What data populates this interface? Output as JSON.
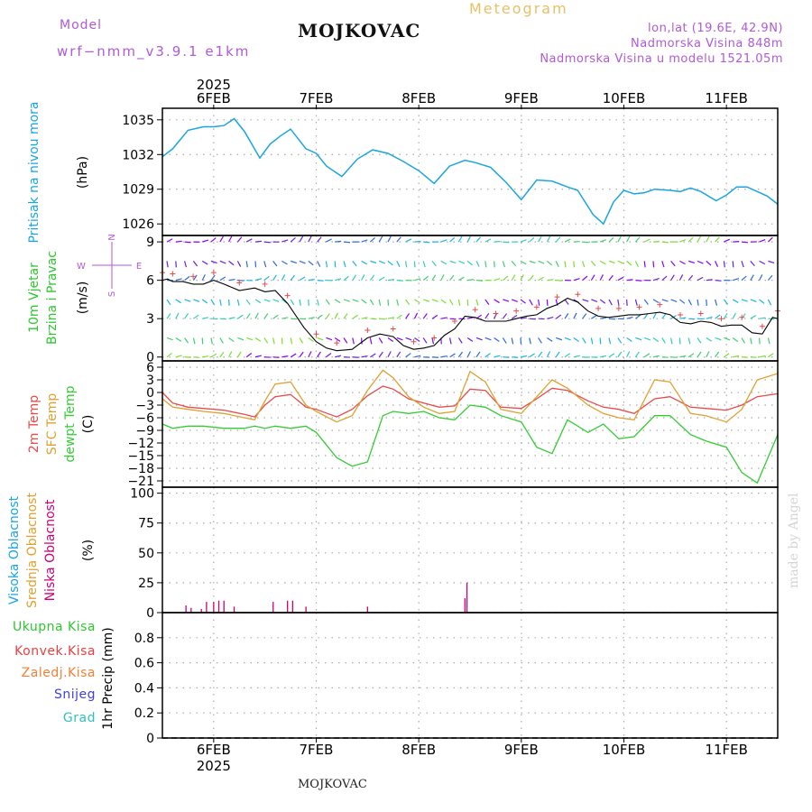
{
  "header": {
    "meteogram_label": "Meteogram",
    "title": "MOJKOVAC",
    "model_label": "Model",
    "model_name": "wrf−nmm_v3.9.1  e1km",
    "lonlat": "lon,lat (19.6E, 42.9N)",
    "elevation": "Nadmorska Visina 848m",
    "model_elevation": "Nadmorska Visina u modelu 1521.05m",
    "footer_title": "MOJKOVAC",
    "credit": "made by Angel"
  },
  "colors": {
    "pressure": "#1ba5e0",
    "temp2m": "#e84a4a",
    "sfc_temp": "#e0a030",
    "dewpoint": "#33cc33",
    "cloud_low": "#cc0077",
    "header_purple": "#b05ad8",
    "meteogram_label": "#e8c068",
    "legend_green": "#2ec82e",
    "legend_red": "#e84040",
    "legend_orange": "#f0803a",
    "legend_blue": "#4040e0",
    "legend_teal": "#30c0c0",
    "legend_cloud_high": "#1ba5e0",
    "legend_cloud_mid": "#e0a030",
    "legend_cloud_low": "#cc0077"
  },
  "time_axis": {
    "year": "2025",
    "days": [
      "6FEB",
      "7FEB",
      "8FEB",
      "9FEB",
      "10FEB",
      "11FEB"
    ]
  },
  "panels": {
    "pressure": {
      "label": "Pritisak na nivou mora",
      "unit": "(hPa)",
      "ticks": [
        "1035",
        "1032",
        "1029",
        "1026"
      ]
    },
    "wind": {
      "label_1": "10m Vjetar",
      "label_2": "Brzina i Pravac",
      "unit": "(m/s)",
      "ticks": [
        "9",
        "6",
        "3",
        "0"
      ],
      "compass": {
        "n": "N",
        "s": "S",
        "w": "W",
        "e": "E"
      }
    },
    "temperature": {
      "label_1": "2m Temp",
      "label_2": "SFC Temp",
      "label_3": "dewpt Temp",
      "unit": "(C)",
      "ticks": [
        "6",
        "3",
        "0",
        "−3",
        "−6",
        "−9",
        "−12",
        "−15",
        "−18",
        "−21"
      ]
    },
    "clouds": {
      "label_high": "Visoka Oblacnost",
      "label_mid": "Srednja Oblacnost",
      "label_low": "Niska Oblacnost",
      "unit": "(%)",
      "ticks": [
        "100",
        "75",
        "50",
        "25",
        "0"
      ]
    },
    "precip": {
      "label_total": "Ukupna Kisa",
      "label_conv": "Konvek.Kisa",
      "label_frozen": "Zaledj.Kisa",
      "label_snow": "Snijeg",
      "label_hail": "Grad",
      "unit": "1hr Precip (mm)",
      "ticks": [
        "0.8",
        "0.6",
        "0.4",
        "0.2",
        "0"
      ]
    }
  },
  "chart_data": {
    "type": "line",
    "x_unit": "days from 5 FEB 2025 00 UTC",
    "x_range": [
      0.5,
      6.5
    ],
    "pressure": {
      "name": "Pritisak na nivou mora",
      "ylim": [
        1025,
        1036
      ],
      "x": [
        0.5,
        0.6,
        0.75,
        0.9,
        1.0,
        1.1,
        1.2,
        1.3,
        1.45,
        1.55,
        1.65,
        1.75,
        1.9,
        2.0,
        2.1,
        2.25,
        2.4,
        2.55,
        2.7,
        2.85,
        3.0,
        3.15,
        3.3,
        3.45,
        3.55,
        3.7,
        3.85,
        4.0,
        4.15,
        4.3,
        4.45,
        4.55,
        4.7,
        4.8,
        4.9,
        5.0,
        5.1,
        5.2,
        5.3,
        5.45,
        5.55,
        5.65,
        5.75,
        5.9,
        6.0,
        6.1,
        6.2,
        6.3,
        6.4,
        6.5
      ],
      "y": [
        1031.8,
        1032.5,
        1034.1,
        1034.4,
        1034.4,
        1034.5,
        1035.1,
        1034.0,
        1031.7,
        1032.9,
        1033.6,
        1034.2,
        1032.5,
        1032.1,
        1031.0,
        1030.1,
        1031.6,
        1032.4,
        1032.1,
        1031.4,
        1030.6,
        1029.5,
        1031.0,
        1031.5,
        1031.3,
        1030.9,
        1029.6,
        1028.1,
        1029.8,
        1029.7,
        1029.2,
        1028.9,
        1026.8,
        1026.0,
        1027.9,
        1028.9,
        1028.6,
        1028.7,
        1029.0,
        1028.9,
        1028.8,
        1029.1,
        1028.8,
        1028.0,
        1028.5,
        1029.2,
        1029.2,
        1028.8,
        1028.4,
        1027.7
      ]
    },
    "wind_speed": {
      "name": "10m Vjetar",
      "ylim": [
        -0.3,
        9.5
      ],
      "x": [
        0.5,
        0.55,
        0.6,
        0.7,
        0.8,
        0.9,
        1.0,
        1.1,
        1.25,
        1.4,
        1.5,
        1.6,
        1.72,
        1.88,
        2.0,
        2.1,
        2.2,
        2.35,
        2.5,
        2.62,
        2.75,
        2.85,
        2.95,
        3.05,
        3.15,
        3.25,
        3.35,
        3.45,
        3.55,
        3.65,
        3.75,
        3.85,
        3.95,
        4.05,
        4.15,
        4.25,
        4.35,
        4.45,
        4.55,
        4.65,
        4.75,
        4.85,
        4.95,
        5.05,
        5.15,
        5.25,
        5.35,
        5.45,
        5.55,
        5.65,
        5.75,
        5.85,
        5.95,
        6.05,
        6.15,
        6.25,
        6.35,
        6.45,
        6.5
      ],
      "y": [
        6.0,
        6.1,
        5.9,
        5.9,
        5.7,
        5.7,
        6.0,
        5.7,
        5.2,
        5.4,
        5.1,
        5.2,
        4.2,
        2.3,
        1.2,
        0.7,
        0.5,
        0.6,
        1.5,
        1.8,
        1.6,
        0.9,
        0.6,
        0.7,
        0.9,
        1.7,
        2.2,
        3.2,
        3.1,
        2.8,
        2.8,
        2.8,
        3.0,
        3.2,
        3.3,
        3.8,
        4.1,
        4.6,
        4.3,
        3.6,
        3.2,
        3.1,
        3.2,
        3.3,
        3.3,
        3.4,
        3.5,
        3.3,
        2.7,
        2.6,
        2.8,
        2.7,
        2.4,
        2.5,
        2.5,
        1.9,
        1.8,
        3.1,
        3.0
      ]
    },
    "wind_barbs": {
      "rows": [
        {
          "speed": 9
        },
        {
          "speed": 7.5
        },
        {
          "speed": 6
        },
        {
          "speed": 4.5
        },
        {
          "speed": 3
        },
        {
          "speed": 1.5
        },
        {
          "speed": 0
        }
      ]
    },
    "temperature": {
      "ylim": [
        -22.5,
        7.5
      ],
      "x": [
        0.5,
        0.6,
        0.75,
        0.9,
        1.1,
        1.3,
        1.4,
        1.5,
        1.6,
        1.75,
        1.9,
        2.0,
        2.2,
        2.35,
        2.5,
        2.65,
        2.75,
        2.9,
        3.05,
        3.2,
        3.35,
        3.5,
        3.65,
        3.8,
        4.0,
        4.15,
        4.3,
        4.45,
        4.65,
        4.8,
        4.95,
        5.1,
        5.3,
        5.45,
        5.65,
        5.8,
        6.0,
        6.15,
        6.3,
        6.5
      ],
      "series": [
        {
          "name": "2m Temp",
          "y": [
            0.0,
            -2.5,
            -3.5,
            -3.8,
            -4.2,
            -5.2,
            -5.8,
            -3.0,
            -1.0,
            -0.5,
            -3.5,
            -4.0,
            -5.8,
            -4.0,
            -0.8,
            1.5,
            0.8,
            -1.5,
            -2.5,
            -3.5,
            -3.2,
            0.8,
            0.5,
            -3.5,
            -3.8,
            -1.5,
            1.0,
            0.5,
            -2.0,
            -3.5,
            -4.0,
            -5.0,
            -1.5,
            -1.0,
            -3.5,
            -3.8,
            -4.2,
            -3.0,
            -1.0,
            -0.3
          ]
        },
        {
          "name": "SFC Temp",
          "y": [
            -1.5,
            -3.5,
            -4.0,
            -4.5,
            -5.0,
            -6.0,
            -6.5,
            -2.0,
            2.0,
            2.5,
            -3.0,
            -4.5,
            -7.0,
            -5.5,
            0.5,
            5.3,
            3.5,
            -1.0,
            -3.5,
            -5.0,
            -4.5,
            5.0,
            2.5,
            -4.0,
            -5.0,
            -1.0,
            3.0,
            1.0,
            -3.0,
            -5.0,
            -6.0,
            -6.5,
            3.0,
            2.5,
            -5.0,
            -5.5,
            -7.0,
            -4.0,
            3.0,
            4.5
          ]
        },
        {
          "name": "dewpt Temp",
          "y": [
            -7.5,
            -8.5,
            -8.0,
            -8.0,
            -8.5,
            -8.5,
            -8.0,
            -8.5,
            -8.0,
            -8.5,
            -8.0,
            -9.5,
            -15.5,
            -17.5,
            -16.5,
            -5.5,
            -4.5,
            -5.0,
            -4.5,
            -6.0,
            -6.5,
            -3.0,
            -3.5,
            -5.5,
            -7.0,
            -13.0,
            -14.5,
            -6.5,
            -9.5,
            -7.5,
            -11.0,
            -10.5,
            -5.5,
            -5.5,
            -10.0,
            -11.5,
            -13.0,
            -19.0,
            -21.5,
            -10.0
          ]
        }
      ]
    },
    "clouds": {
      "ylim": [
        0,
        105
      ],
      "series": [
        {
          "name": "Niska Oblacnost",
          "x": [
            0.73,
            0.78,
            0.88,
            0.93,
            1.0,
            1.05,
            1.1,
            1.2,
            1.58,
            1.72,
            1.77,
            1.9,
            2.5,
            3.45,
            3.47
          ],
          "y": [
            6,
            4,
            3,
            9,
            9,
            10,
            10,
            5,
            9,
            10,
            10,
            5,
            5,
            12,
            25
          ]
        }
      ]
    },
    "precip": {
      "ylim": [
        0,
        1.0
      ],
      "series": [
        {
          "name": "Ukupna Kisa",
          "x": [
            0.5,
            6.5
          ],
          "y": [
            0,
            0
          ]
        }
      ]
    }
  }
}
